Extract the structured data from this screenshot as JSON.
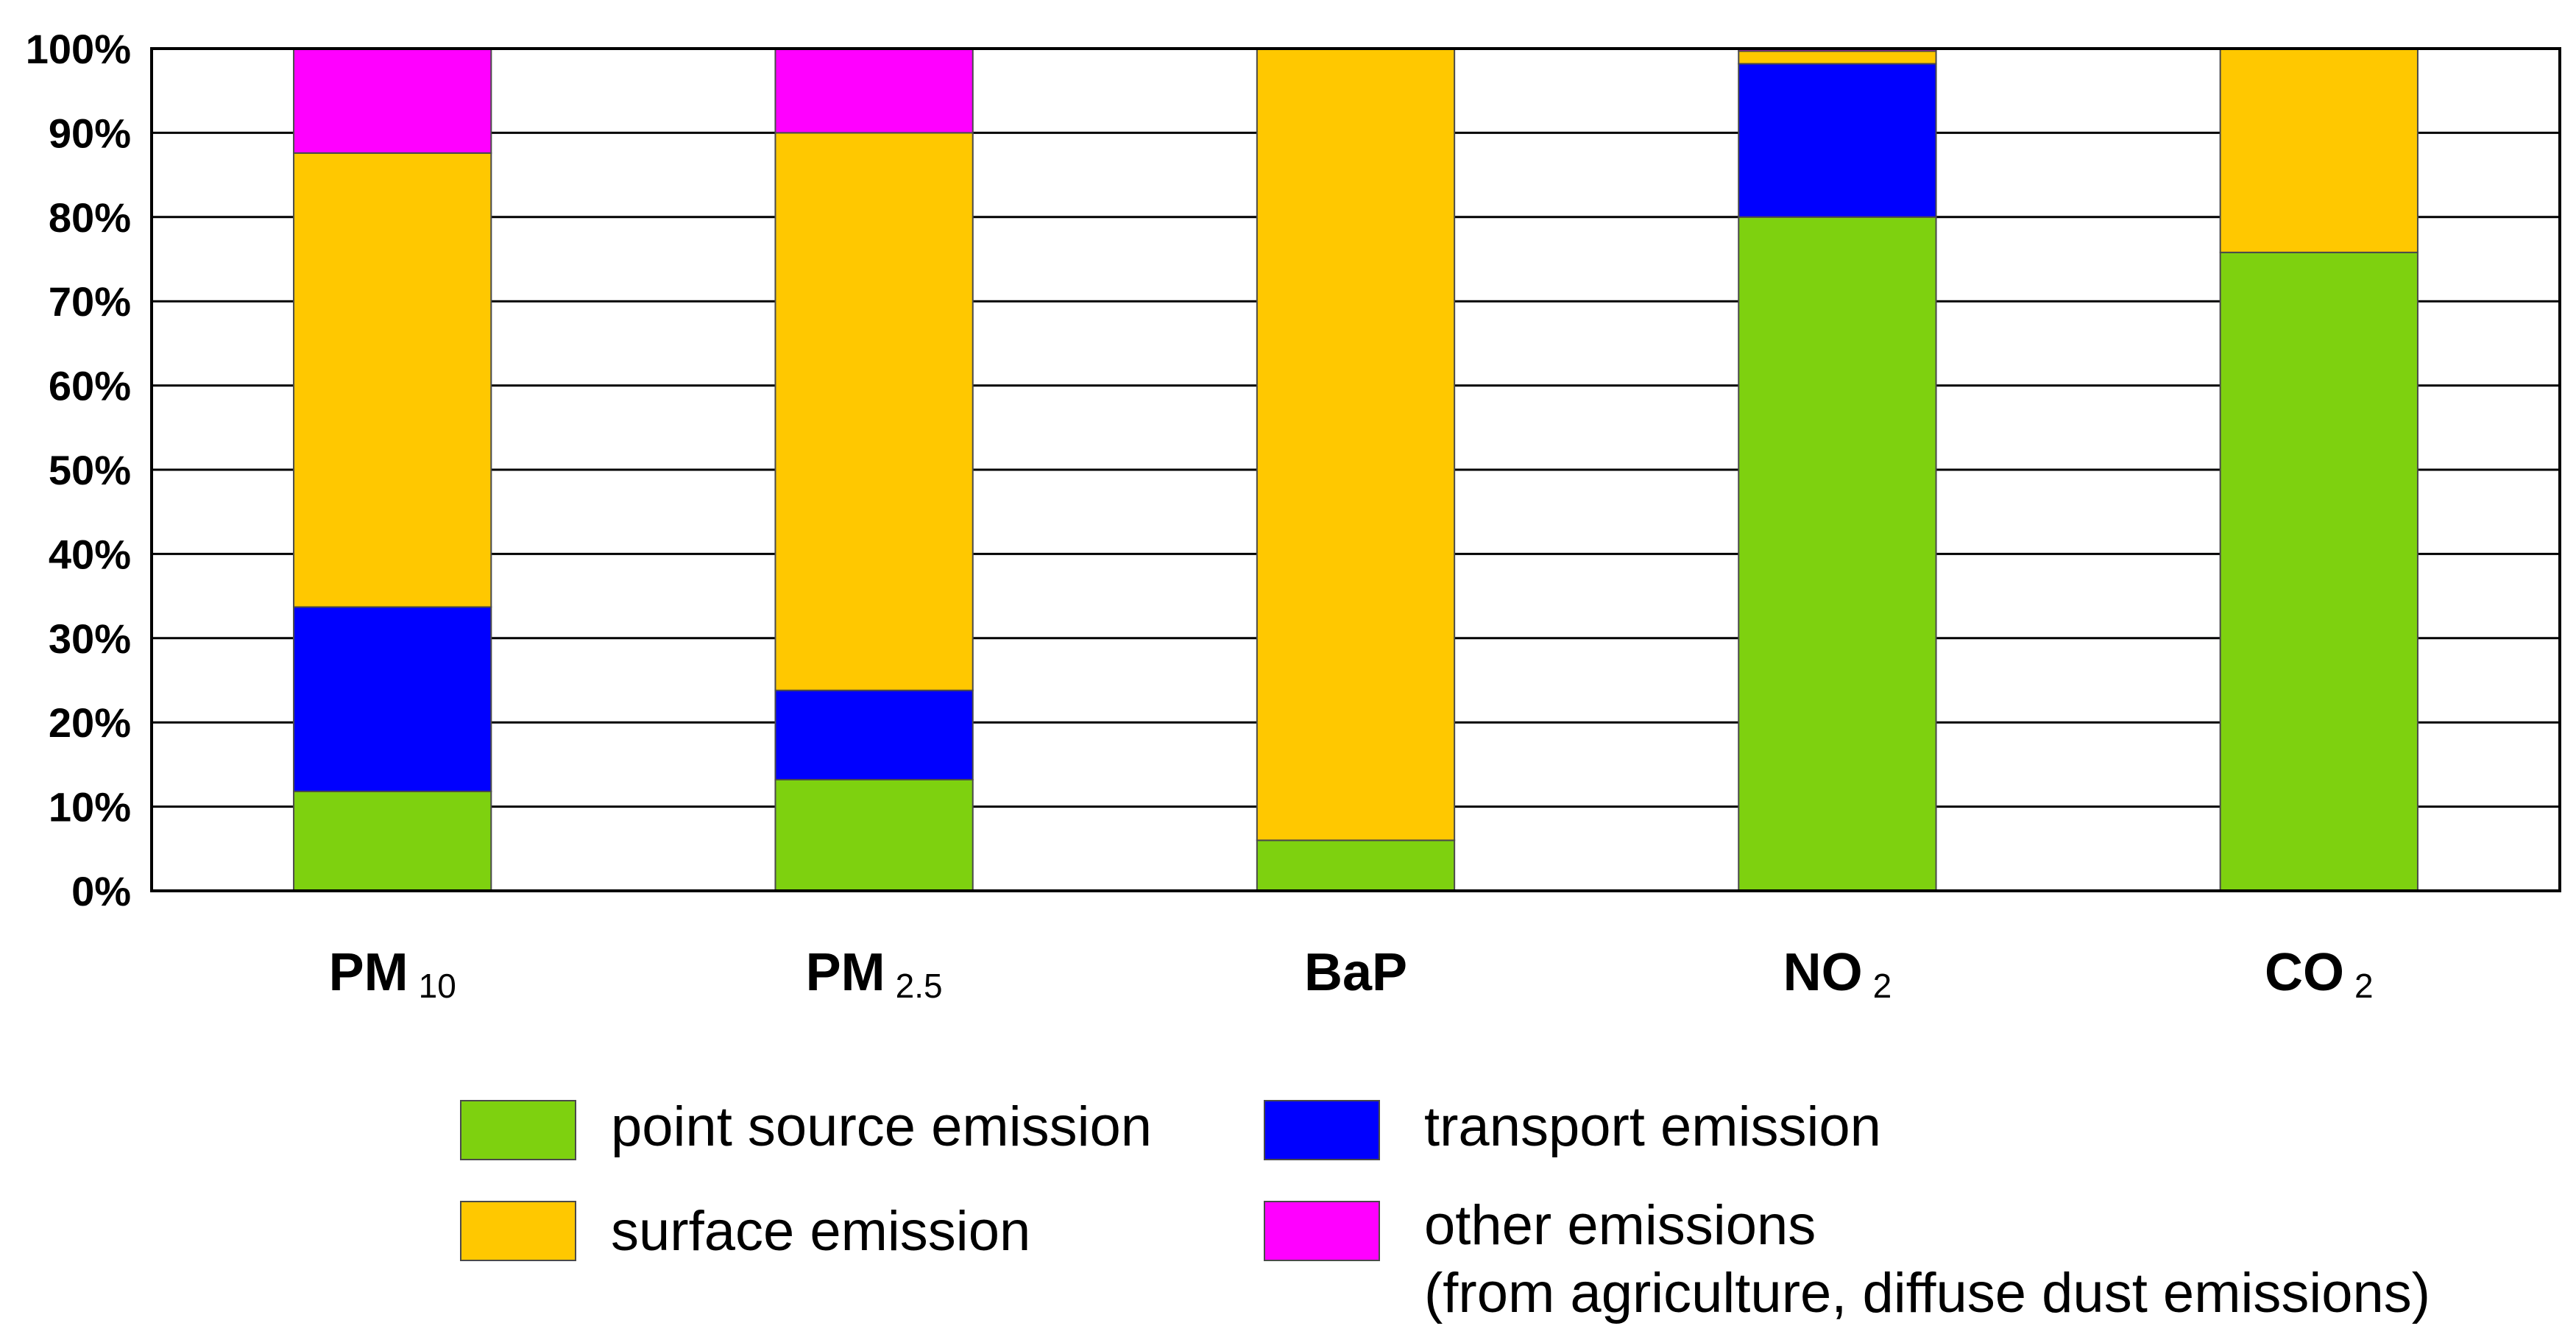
{
  "chart_data": {
    "type": "bar",
    "stacked": true,
    "categories": [
      {
        "main": "PM",
        "sub": "10"
      },
      {
        "main": "PM",
        "sub": "2.5"
      },
      {
        "main": "BaP",
        "sub": ""
      },
      {
        "main": "NO",
        "sub": "2"
      },
      {
        "main": "CO",
        "sub": "2"
      }
    ],
    "series": [
      {
        "name": "point source emission",
        "color": "#7ed10f",
        "values": [
          11.8,
          13.2,
          6.0,
          80.0,
          75.8
        ]
      },
      {
        "name": "transport emission",
        "color": "#0000ff",
        "values": [
          21.9,
          10.6,
          0.0,
          18.2,
          0.0
        ]
      },
      {
        "name": "surface emission",
        "color": "#ffc800",
        "values": [
          53.9,
          66.2,
          94.0,
          1.5,
          24.2
        ]
      },
      {
        "name": "other emissions",
        "color": "#ff00ff",
        "values": [
          12.4,
          10.0,
          0.0,
          0.3,
          0.0
        ]
      }
    ],
    "yticks": [
      "0%",
      "10%",
      "20%",
      "30%",
      "40%",
      "50%",
      "60%",
      "70%",
      "80%",
      "90%",
      "100%"
    ],
    "ylim": [
      0,
      100
    ],
    "grid": true,
    "legend_position": "bottom",
    "legend": [
      {
        "lines": [
          "point source emission"
        ],
        "color": "#7ed10f"
      },
      {
        "lines": [
          "transport emission"
        ],
        "color": "#0000ff"
      },
      {
        "lines": [
          "surface emission"
        ],
        "color": "#ffc800"
      },
      {
        "lines": [
          "other emissions",
          "(from agriculture, diffuse dust emissions)"
        ],
        "color": "#ff00ff"
      }
    ]
  }
}
